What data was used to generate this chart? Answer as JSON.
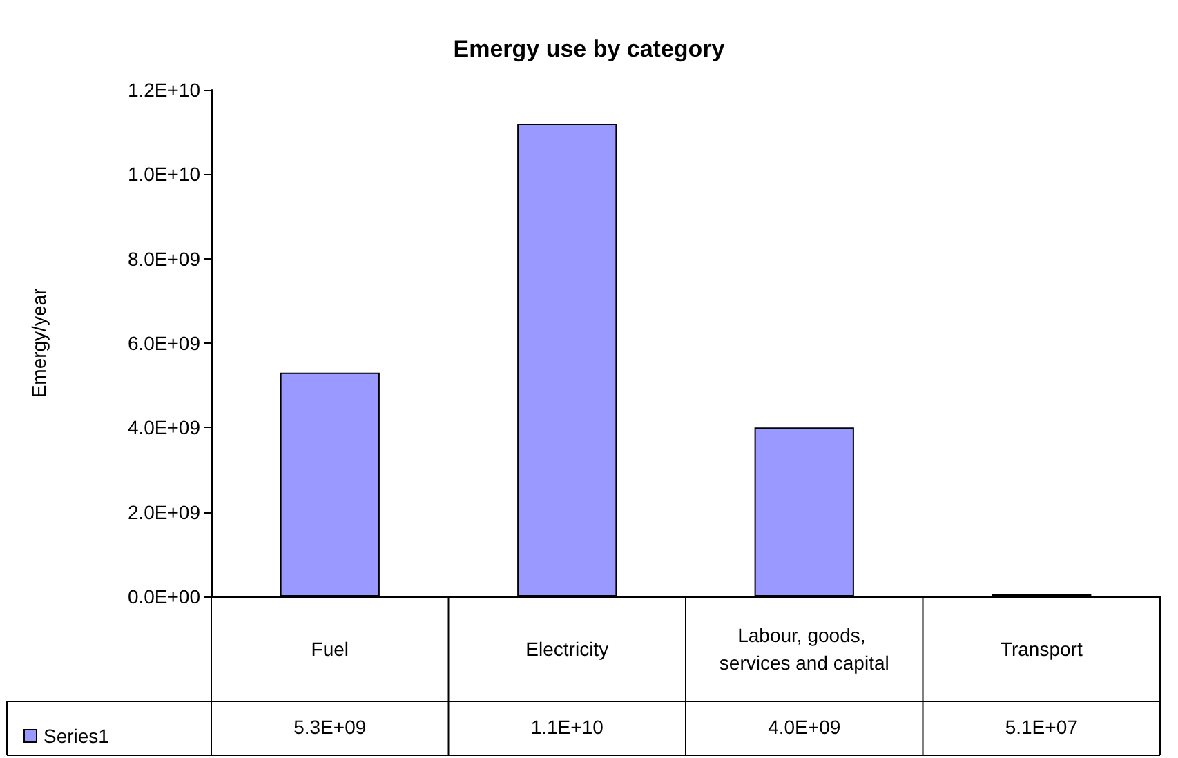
{
  "chart_data": {
    "type": "bar",
    "title": "Emergy use by category",
    "ylabel": "Emergy/year",
    "categories": [
      "Fuel",
      "Electricity",
      "Labour, goods, services and capital",
      "Transport"
    ],
    "series": [
      {
        "name": "Series1",
        "color": "#9999ff",
        "values": [
          5300000000.0,
          11200000000.0,
          4000000000.0,
          51000000.0
        ],
        "value_labels": [
          "5.3E+09",
          "1.1E+10",
          "4.0E+09",
          "5.1E+07"
        ]
      }
    ],
    "ylim": [
      0,
      12000000000
    ],
    "yticks": [
      {
        "value": 0,
        "label": "0.0E+00"
      },
      {
        "value": 2000000000,
        "label": "2.0E+09"
      },
      {
        "value": 4000000000,
        "label": "4.0E+09"
      },
      {
        "value": 6000000000,
        "label": "6.0E+09"
      },
      {
        "value": 8000000000,
        "label": "8.0E+09"
      },
      {
        "value": 10000000000,
        "label": "1.0E+10"
      },
      {
        "value": 12000000000,
        "label": "1.2E+10"
      }
    ],
    "legend": "bottom left"
  }
}
